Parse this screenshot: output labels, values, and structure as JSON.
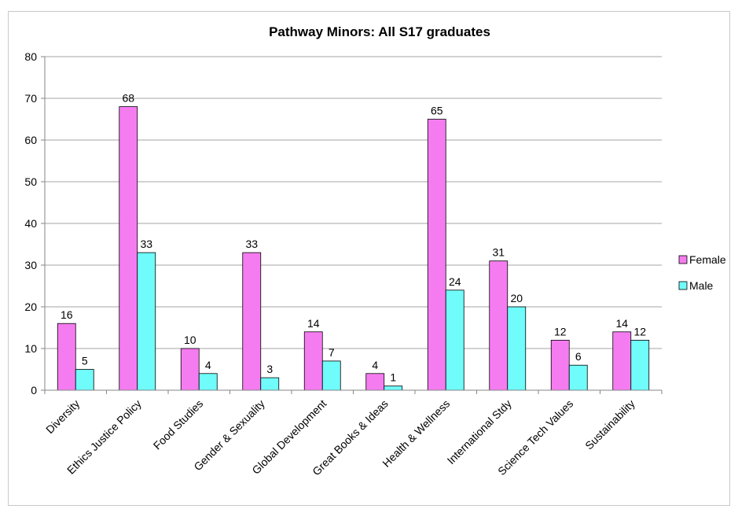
{
  "chart_data": {
    "type": "bar",
    "title": "Pathway Minors: All S17 graduates",
    "xlabel": "",
    "ylabel": "",
    "ylim": [
      0,
      80
    ],
    "yticks": [
      0,
      10,
      20,
      30,
      40,
      50,
      60,
      70,
      80
    ],
    "categories": [
      "Diversity",
      "Ethics Justice Policy",
      "Food Studies",
      "Gender & Sexuality",
      "Global Development",
      "Great Books & Ideas",
      "Health & Wellness",
      "International Stdy",
      "Science Tech Values",
      "Sustainability"
    ],
    "series": [
      {
        "name": "Female",
        "color": "#f57cf0",
        "values": [
          16,
          68,
          10,
          33,
          14,
          4,
          65,
          31,
          12,
          14
        ]
      },
      {
        "name": "Male",
        "color": "#6ffcfa",
        "values": [
          5,
          33,
          4,
          3,
          7,
          1,
          24,
          20,
          6,
          12
        ]
      }
    ],
    "legend_position": "right",
    "grid": true
  }
}
